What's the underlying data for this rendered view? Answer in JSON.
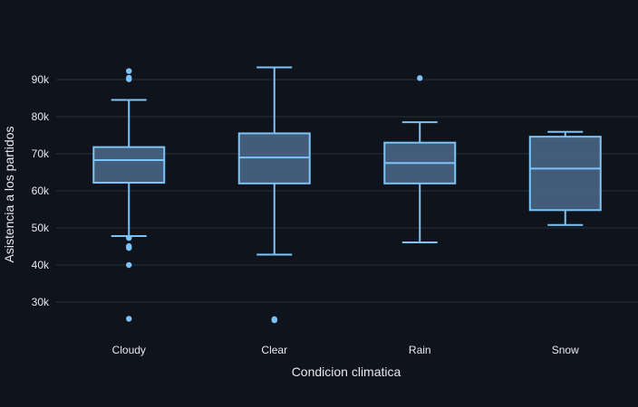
{
  "chart_data": {
    "type": "box",
    "xlabel": "Condicion climatica",
    "ylabel": "Asistencia a los partidos",
    "ylim": [
      20000,
      100000
    ],
    "yticks": [
      30000,
      40000,
      50000,
      60000,
      70000,
      80000,
      90000
    ],
    "ytick_labels": [
      "30k",
      "40k",
      "50k",
      "60k",
      "70k",
      "80k",
      "90k"
    ],
    "grid": true,
    "colors": {
      "box_line": "#7cc4f8",
      "box_fill": "#4b6a8a",
      "background": "#0f131b",
      "grid": "#2a303c",
      "text": "#e6e8ee"
    },
    "categories": [
      "Cloudy",
      "Clear",
      "Rain",
      "Snow"
    ],
    "boxes": [
      {
        "category": "Cloudy",
        "min": 47800,
        "q1": 62200,
        "median": 68300,
        "q3": 71800,
        "max": 84500,
        "outliers": [
          92300,
          90500,
          90100,
          47300,
          45100,
          44600,
          40000,
          25500
        ]
      },
      {
        "category": "Clear",
        "min": 42800,
        "q1": 62000,
        "median": 69000,
        "q3": 75500,
        "max": 93300,
        "outliers": [
          25400,
          25100
        ]
      },
      {
        "category": "Rain",
        "min": 46100,
        "q1": 62000,
        "median": 67500,
        "q3": 73000,
        "max": 78500,
        "outliers": [
          90400
        ]
      },
      {
        "category": "Snow",
        "min": 50800,
        "q1": 54800,
        "median": 66000,
        "q3": 74600,
        "max": 75900,
        "outliers": []
      }
    ]
  }
}
